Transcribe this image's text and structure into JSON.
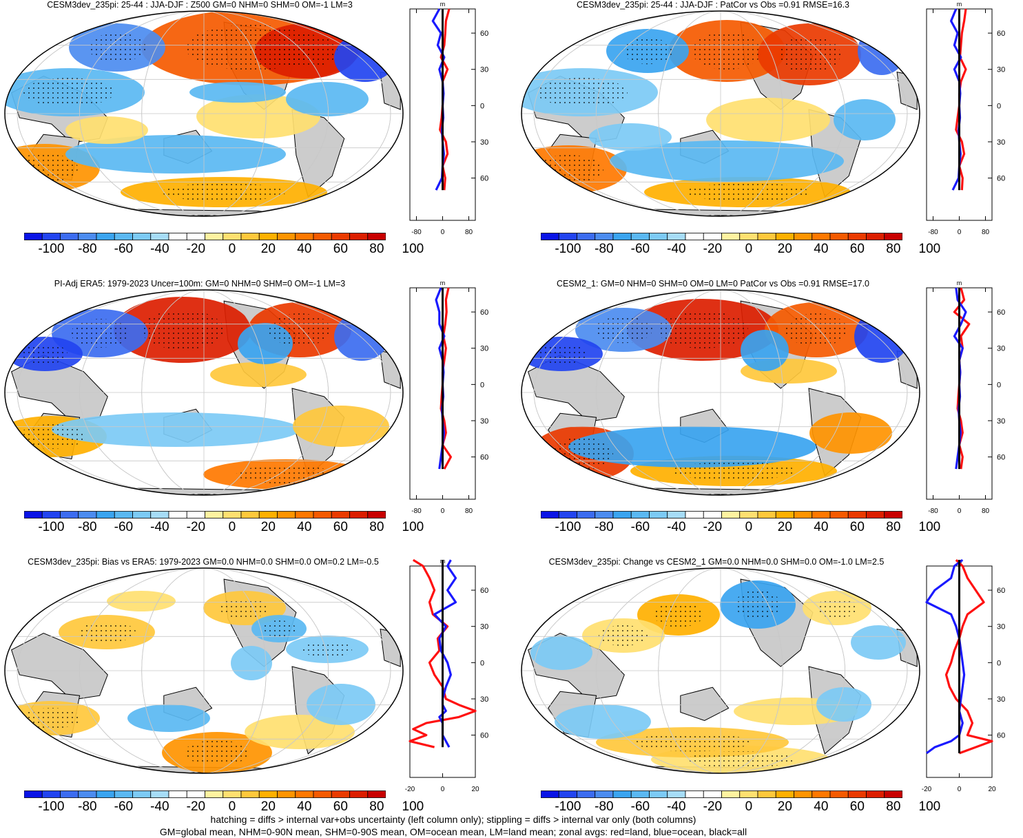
{
  "figure": {
    "footnote_line1": "hatching = diffs > internal var+obs uncertainty (left column only); stippling = diffs > internal var only (both columns)",
    "footnote_line2": "GM=global mean, NHM=0-90N mean, SHM=0-90S mean, OM=ocean mean, LM=land mean; zonal avgs: red=land, blue=ocean, black=all"
  },
  "colors": {
    "land": "#cccccc",
    "ocean_line": "#1a1aff",
    "land_line": "#ff1010",
    "all_line": "#000000",
    "colorbar": [
      "#0a14e6",
      "#2244f0",
      "#3c6cf0",
      "#4c8cf0",
      "#3aa4f0",
      "#5ab8f2",
      "#7ccaf5",
      "#a6dcf7",
      "#ffffff",
      "#ffffff",
      "#fff3a0",
      "#ffe070",
      "#ffc83c",
      "#ffb000",
      "#ff9400",
      "#ff7800",
      "#f55a00",
      "#ea3a00",
      "#dc1e00",
      "#c80000"
    ]
  },
  "chart_data": [
    {
      "type": "heatmap",
      "title": "CESM3dev_235pi: 25-44 : JJA-DJF : Z500 GM=0 NHM=0 SHM=0 OM=-1 LM=3",
      "colorbar_labels": [
        "-100",
        "-80",
        "-60",
        "-40",
        "-20",
        "0",
        "20",
        "40",
        "60",
        "80",
        "100"
      ],
      "zonal_profile": {
        "y_ticks": [
          "60N",
          "30N",
          "0",
          "30S",
          "60S"
        ],
        "x_ticks": [
          "-80",
          "0",
          "80"
        ],
        "x_range": [
          -100,
          100
        ],
        "unit": "m",
        "lat": [
          80,
          70,
          60,
          50,
          40,
          30,
          20,
          10,
          0,
          -10,
          -20,
          -30,
          -40,
          -50,
          -60,
          -70
        ],
        "land": [
          20,
          10,
          8,
          5,
          -5,
          15,
          0,
          2,
          0,
          -3,
          -8,
          10,
          15,
          0,
          8,
          5
        ],
        "ocean": [
          -10,
          -30,
          -5,
          -15,
          5,
          -10,
          0,
          3,
          0,
          2,
          -2,
          0,
          4,
          0,
          -2,
          -20
        ],
        "all": [
          0,
          0,
          0,
          0,
          0,
          0,
          0,
          0,
          0,
          0,
          0,
          0,
          0,
          0,
          0,
          0
        ]
      }
    },
    {
      "type": "heatmap",
      "title": "CESM3dev_235pi: 25-44 : JJA-DJF : PatCor vs Obs =0.91 RMSE=16.3",
      "colorbar_labels": [
        "-100",
        "-80",
        "-60",
        "-40",
        "-20",
        "0",
        "20",
        "40",
        "60",
        "80",
        "100"
      ],
      "zonal_profile": {
        "y_ticks": [
          "60N",
          "30N",
          "0",
          "30S",
          "60S"
        ],
        "x_ticks": [
          "-80",
          "0",
          "80"
        ],
        "x_range": [
          -100,
          100
        ],
        "unit": "m",
        "lat": [
          80,
          70,
          60,
          50,
          40,
          30,
          20,
          10,
          0,
          -10,
          -20,
          -30,
          -40,
          -50,
          -60,
          -70
        ],
        "land": [
          20,
          15,
          8,
          5,
          2,
          20,
          5,
          0,
          0,
          -5,
          -10,
          8,
          15,
          0,
          10,
          8
        ],
        "ocean": [
          -10,
          -25,
          -5,
          -15,
          5,
          -15,
          0,
          3,
          0,
          2,
          -2,
          0,
          4,
          0,
          -2,
          -20
        ],
        "all": [
          0,
          0,
          0,
          0,
          0,
          0,
          0,
          0,
          0,
          0,
          0,
          0,
          0,
          0,
          0,
          0
        ]
      }
    },
    {
      "type": "heatmap",
      "title": "PI-Adj ERA5: 1979-2023 Uncer=100m: GM=0 NHM=0 SHM=0 OM=-1 LM=3",
      "colorbar_labels": [
        "-100",
        "-80",
        "-60",
        "-40",
        "-20",
        "0",
        "20",
        "40",
        "60",
        "80",
        "100"
      ],
      "zonal_profile": {
        "y_ticks": [
          "60N",
          "30N",
          "0",
          "30S",
          "60S"
        ],
        "x_ticks": [
          "-80",
          "0",
          "80"
        ],
        "x_range": [
          -100,
          100
        ],
        "unit": "m",
        "lat": [
          80,
          70,
          60,
          50,
          40,
          30,
          20,
          10,
          0,
          -10,
          -20,
          -30,
          -40,
          -50,
          -60,
          -70
        ],
        "land": [
          18,
          10,
          12,
          8,
          2,
          10,
          5,
          0,
          0,
          -3,
          -5,
          5,
          10,
          0,
          25,
          5
        ],
        "ocean": [
          -5,
          -20,
          -10,
          -10,
          5,
          -10,
          0,
          3,
          0,
          2,
          -2,
          0,
          4,
          0,
          -5,
          -10
        ],
        "all": [
          0,
          0,
          0,
          0,
          0,
          0,
          0,
          0,
          0,
          0,
          0,
          0,
          0,
          0,
          0,
          0
        ]
      }
    },
    {
      "type": "heatmap",
      "title": "CESM2_1: GM=0 NHM=0 SHM=0 OM=0 LM=0 PatCor vs Obs =0.91 RMSE=17.0",
      "colorbar_labels": [
        "-100",
        "-80",
        "-60",
        "-40",
        "-20",
        "0",
        "20",
        "40",
        "60",
        "80",
        "100"
      ],
      "zonal_profile": {
        "y_ticks": [
          "60N",
          "30N",
          "0",
          "30S",
          "60S"
        ],
        "x_ticks": [
          "-80",
          "0",
          "80"
        ],
        "x_range": [
          -100,
          100
        ],
        "unit": "m",
        "lat": [
          80,
          70,
          60,
          50,
          40,
          30,
          20,
          10,
          0,
          -10,
          -20,
          -30,
          -40,
          -50,
          -60,
          -70
        ],
        "land": [
          5,
          15,
          -15,
          30,
          5,
          10,
          0,
          3,
          0,
          -3,
          -5,
          5,
          10,
          0,
          10,
          5
        ],
        "ocean": [
          -10,
          -5,
          20,
          5,
          -15,
          10,
          0,
          3,
          0,
          2,
          -2,
          0,
          4,
          0,
          -5,
          -10
        ],
        "all": [
          0,
          0,
          0,
          0,
          0,
          0,
          0,
          0,
          0,
          0,
          0,
          0,
          0,
          0,
          0,
          0
        ]
      }
    },
    {
      "type": "heatmap",
      "title": "CESM3dev_235pi: Bias vs ERA5: 1979-2023 GM=0.0 NHM=0.0 SHM=0.0 OM=0.2 LM=-0.5",
      "colorbar_labels": [
        "-100",
        "-80",
        "-60",
        "-40",
        "-20",
        "0",
        "20",
        "40",
        "60",
        "80",
        "100"
      ],
      "zonal_profile": {
        "y_ticks": [
          "60N",
          "30N",
          "0",
          "30S",
          "60S"
        ],
        "x_ticks": [
          "-20",
          "0",
          "20"
        ],
        "x_range": [
          -20,
          20
        ],
        "unit": "m",
        "lat": [
          85,
          80,
          70,
          60,
          50,
          40,
          30,
          20,
          10,
          0,
          -10,
          -20,
          -30,
          -35,
          -40,
          -45,
          -50,
          -55,
          -60,
          -65,
          -70
        ],
        "land": [
          -18,
          -12,
          -8,
          -5,
          -8,
          -6,
          3,
          -3,
          -2,
          -8,
          -5,
          0,
          2,
          10,
          20,
          10,
          -10,
          -18,
          -10,
          -20,
          -5
        ],
        "ocean": [
          5,
          3,
          8,
          3,
          8,
          -5,
          2,
          -2,
          -1,
          3,
          5,
          2,
          0,
          0,
          2,
          -2,
          0,
          0,
          0,
          2,
          4
        ],
        "all": [
          0,
          0,
          0,
          0,
          0,
          0,
          0,
          0,
          0,
          0,
          0,
          0,
          0,
          0,
          0,
          0,
          0,
          0,
          0,
          0,
          0
        ]
      }
    },
    {
      "type": "heatmap",
      "title": "CESM3dev_235pi: Change vs CESM2_1 GM=0.0 NHM=0.0 SHM=0.0 OM=-1.0 LM=2.5",
      "colorbar_labels": [
        "-100",
        "-80",
        "-60",
        "-40",
        "-20",
        "0",
        "20",
        "40",
        "60",
        "80",
        "100"
      ],
      "zonal_profile": {
        "y_ticks": [
          "60N",
          "30N",
          "0",
          "30S",
          "60S"
        ],
        "x_ticks": [
          "-20",
          "0",
          "20"
        ],
        "x_range": [
          -20,
          20
        ],
        "unit": "m",
        "lat": [
          85,
          80,
          70,
          60,
          50,
          40,
          30,
          20,
          10,
          0,
          -10,
          -20,
          -30,
          -40,
          -50,
          -60,
          -65,
          -70,
          -75
        ],
        "land": [
          -2,
          2,
          5,
          10,
          15,
          5,
          2,
          0,
          -3,
          -5,
          -8,
          -6,
          -2,
          5,
          8,
          5,
          20,
          10,
          0
        ],
        "ocean": [
          2,
          -3,
          -5,
          -15,
          -20,
          -5,
          -2,
          0,
          1,
          2,
          3,
          2,
          1,
          0,
          2,
          0,
          -5,
          -15,
          -20
        ],
        "all": [
          0,
          0,
          0,
          0,
          0,
          0,
          0,
          0,
          0,
          0,
          0,
          0,
          0,
          0,
          0,
          0,
          0,
          0,
          0
        ]
      }
    }
  ]
}
